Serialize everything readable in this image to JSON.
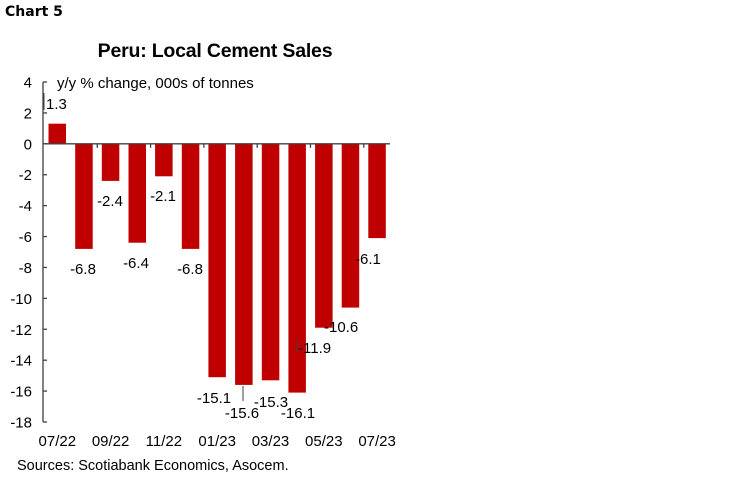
{
  "header": {
    "chart_number": "Chart 5"
  },
  "footer": {
    "sources": "Sources: Scotiabank Economics, Asocem."
  },
  "colors": {
    "bar": "#C00000",
    "axis": "#404040"
  },
  "chart_data": {
    "type": "bar",
    "title": "Peru: Local Cement Sales",
    "subtitle": "y/y % change, 000s of tonnes",
    "xlabel": "",
    "ylabel": "y/y % change, 000s of tonnes",
    "categories": [
      "07/22",
      "08/22",
      "09/22",
      "10/22",
      "11/22",
      "12/22",
      "01/23",
      "02/23",
      "03/23",
      "04/23",
      "05/23",
      "06/23",
      "07/23"
    ],
    "values": [
      1.3,
      -6.8,
      -2.4,
      -6.4,
      -2.1,
      -6.8,
      -15.1,
      -15.6,
      -15.3,
      -16.1,
      -11.9,
      -10.6,
      -6.1
    ],
    "data_labels": [
      "1.3",
      "-6.8",
      "-2.4",
      "-6.4",
      "-2.1",
      "-6.8",
      "-15.1",
      "-15.6",
      "-15.3",
      "-16.1",
      "-11.9",
      "-10.6",
      "-6.1"
    ],
    "x_tick_labels": [
      "07/22",
      "09/22",
      "11/22",
      "01/23",
      "03/23",
      "05/23",
      "07/23"
    ],
    "y_ticks": [
      4,
      2,
      0,
      -2,
      -4,
      -6,
      -8,
      -10,
      -12,
      -14,
      -16,
      -18
    ],
    "ylim": [
      -18,
      4
    ],
    "grid": false,
    "legend": null
  }
}
